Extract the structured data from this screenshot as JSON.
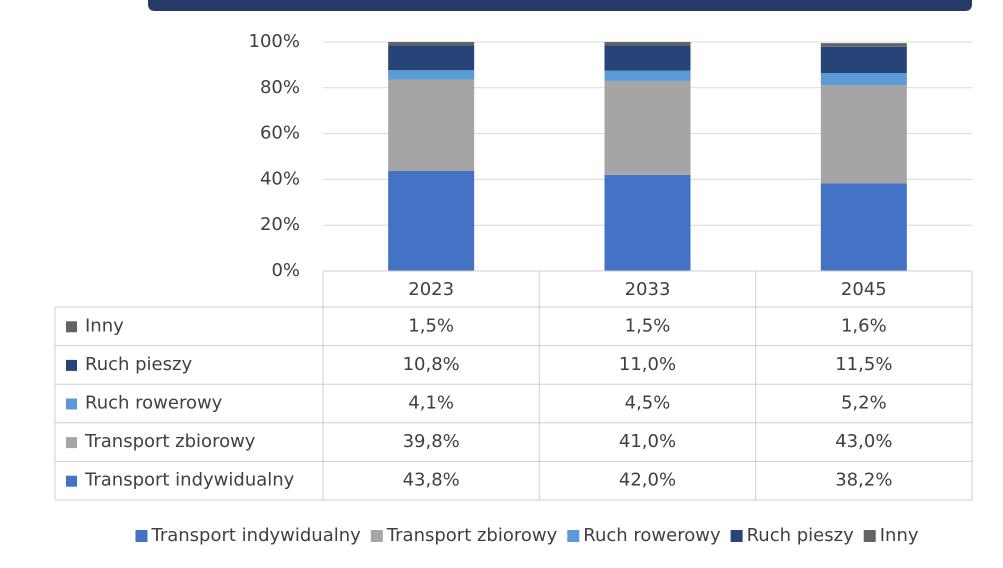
{
  "chart_data": {
    "type": "stacked-bar",
    "categories": [
      "2023",
      "2033",
      "2045"
    ],
    "series": [
      {
        "name": "Transport indywidualny",
        "color": "#4472c4",
        "values": [
          43.8,
          42.0,
          38.2
        ],
        "value_labels": [
          "43,8%",
          "42,0%",
          "38,2%"
        ]
      },
      {
        "name": "Transport zbiorowy",
        "color": "#a5a5a5",
        "values": [
          39.8,
          41.0,
          43.0
        ],
        "value_labels": [
          "39,8%",
          "41,0%",
          "43,0%"
        ]
      },
      {
        "name": "Ruch rowerowy",
        "color": "#5b9bd5",
        "values": [
          4.1,
          4.5,
          5.2
        ],
        "value_labels": [
          "4,1%",
          "4,5%",
          "5,2%"
        ]
      },
      {
        "name": "Ruch pieszy",
        "color": "#264478",
        "values": [
          10.8,
          11.0,
          11.5
        ],
        "value_labels": [
          "10,8%",
          "11,0%",
          "11,5%"
        ]
      },
      {
        "name": "Inny",
        "color": "#636363",
        "values": [
          1.5,
          1.5,
          1.6
        ],
        "value_labels": [
          "1,5%",
          "1,5%",
          "1,6%"
        ]
      }
    ],
    "ylim": [
      0,
      100
    ],
    "yticks": [
      {
        "value": 0,
        "label": "0%"
      },
      {
        "value": 20,
        "label": "20%"
      },
      {
        "value": 40,
        "label": "40%"
      },
      {
        "value": 60,
        "label": "60%"
      },
      {
        "value": 80,
        "label": "80%"
      },
      {
        "value": 100,
        "label": "100%"
      }
    ],
    "grid": true,
    "legend": "bottom"
  }
}
